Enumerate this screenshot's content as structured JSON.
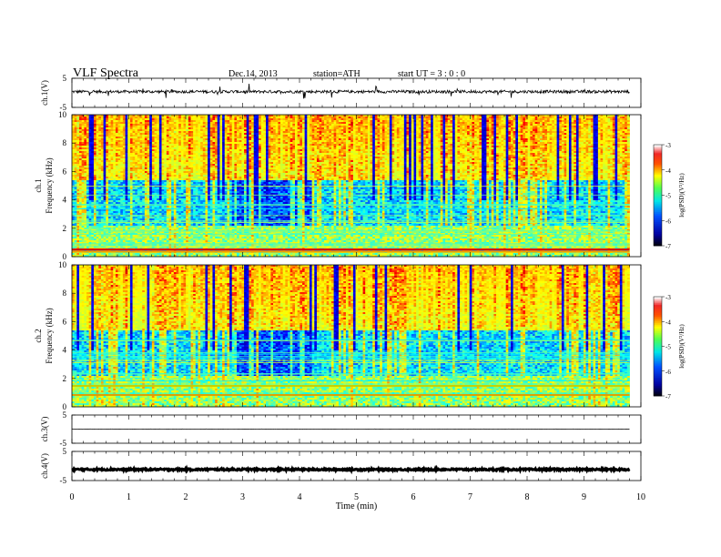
{
  "header": {
    "title": "VLF  Spectra",
    "date": "Dec.14, 2013",
    "station": "station=ATH",
    "start_ut": "start  UT =   3 : 0 : 0"
  },
  "chart_data": [
    {
      "id": "ch1_waveform",
      "type": "line",
      "ylabel": "ch.1(V)",
      "yticks": [
        "5",
        "-5"
      ],
      "ylim": [
        -5,
        5
      ],
      "x_end_min": 9.8,
      "series": [
        {
          "baseline": 0.4,
          "noise_amplitude": 0.5,
          "spike_amplitude": 2.5
        }
      ]
    },
    {
      "id": "ch1_spectrogram",
      "type": "heatmap",
      "ylabel_top": "ch.1",
      "ylabel": "Frequency  (kHz)",
      "yticks": [
        "0",
        "2",
        "4",
        "6",
        "8",
        "10"
      ],
      "ylim": [
        0,
        10
      ],
      "x_end_min": 9.8,
      "colorbar": {
        "label": "log(PSD)(V²/Hz)",
        "ticks": [
          "-3",
          "-4",
          "-5",
          "-6",
          "-7"
        ],
        "range": [
          -7,
          -3
        ]
      }
    },
    {
      "id": "ch2_spectrogram",
      "type": "heatmap",
      "ylabel_top": "ch.2",
      "ylabel": "Frequency  (kHz)",
      "yticks": [
        "0",
        "2",
        "4",
        "6",
        "8",
        "10"
      ],
      "ylim": [
        0,
        10
      ],
      "x_end_min": 9.8,
      "colorbar": {
        "label": "log(PSD)(V²/Hz)",
        "ticks": [
          "-3",
          "-4",
          "-5",
          "-6",
          "-7"
        ],
        "range": [
          -7,
          -3
        ]
      }
    },
    {
      "id": "ch3_waveform",
      "type": "line",
      "ylabel": "ch.3(V)",
      "yticks": [
        "5",
        "-5"
      ],
      "ylim": [
        -5,
        5
      ],
      "x_end_min": 9.8,
      "series": [
        {
          "baseline": 0.0,
          "noise_amplitude": 0.05
        }
      ]
    },
    {
      "id": "ch4_waveform",
      "type": "line",
      "ylabel": "ch.4(V)",
      "yticks": [
        "5",
        "-5"
      ],
      "ylim": [
        -5,
        5
      ],
      "x_end_min": 9.8,
      "series": [
        {
          "baseline": -1.2,
          "noise_amplitude": 0.3
        }
      ]
    }
  ],
  "time_axis": {
    "xlabel": "Time  (min)",
    "xlim": [
      0,
      10
    ],
    "ticks": [
      "0",
      "1",
      "2",
      "3",
      "4",
      "5",
      "6",
      "7",
      "8",
      "9",
      "10"
    ]
  }
}
